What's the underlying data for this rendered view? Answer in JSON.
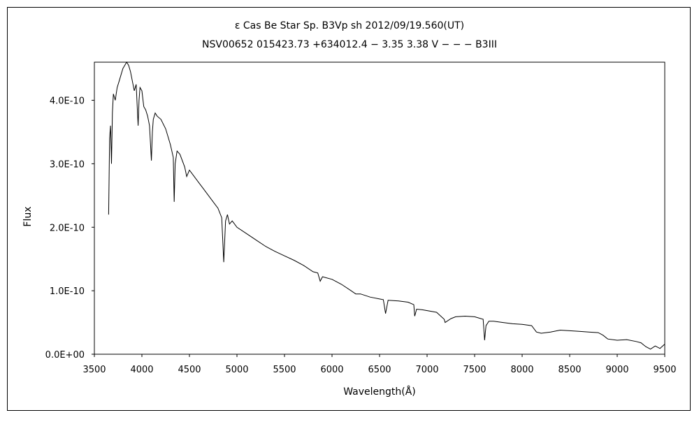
{
  "chart_data": {
    "type": "line",
    "title": "ε  Cas    Be Star    Sp. B3Vp sh    2012/09/19.560(UT)",
    "subtitle": "NSV00652 015423.73 +634012.4 − 3.35 3.38  V − − −  B3III",
    "xlabel": "Wavelength(Å)",
    "ylabel": "Flux",
    "xlim": [
      3500,
      9500
    ],
    "ylim": [
      0,
      4.6e-10
    ],
    "x_ticks": [
      3500,
      4000,
      4500,
      5000,
      5500,
      6000,
      6500,
      7000,
      7500,
      8000,
      8500,
      9000,
      9500
    ],
    "x_tick_labels": [
      "3500",
      "4000",
      "4500",
      "5000",
      "5500",
      "6000",
      "6500",
      "7000",
      "7500",
      "8000",
      "8500",
      "9000",
      "9500"
    ],
    "y_ticks": [
      0,
      1e-10,
      2e-10,
      3e-10,
      4e-10
    ],
    "y_tick_labels": [
      "0.0E+00",
      "1.0E-10",
      "2.0E-10",
      "3.0E-10",
      "4.0E-10"
    ],
    "grid": false,
    "legend": "none",
    "line_color": "#000000",
    "series": [
      {
        "x": [
          3650,
          3660,
          3670,
          3680,
          3690,
          3700,
          3720,
          3740,
          3760,
          3780,
          3800,
          3820,
          3840,
          3860,
          3880,
          3900,
          3920,
          3940,
          3960,
          3970,
          3980,
          4000,
          4020,
          4040,
          4060,
          4080,
          4100,
          4110,
          4120,
          4140,
          4160,
          4200,
          4250,
          4300,
          4330,
          4340,
          4350,
          4370,
          4400,
          4450,
          4471,
          4500,
          4550,
          4600,
          4650,
          4700,
          4750,
          4800,
          4840,
          4861,
          4880,
          4900,
          4921,
          4950,
          5000,
          5100,
          5200,
          5300,
          5400,
          5500,
          5600,
          5700,
          5800,
          5850,
          5876,
          5900,
          6000,
          6100,
          6200,
          6250,
          6300,
          6400,
          6500,
          6540,
          6563,
          6590,
          6700,
          6800,
          6860,
          6870,
          6890,
          6950,
          7100,
          7180,
          7190,
          7250,
          7300,
          7400,
          7500,
          7590,
          7605,
          7620,
          7650,
          7700,
          7800,
          7900,
          8000,
          8100,
          8150,
          8200,
          8300,
          8400,
          8500,
          8600,
          8700,
          8800,
          8850,
          8900,
          9000,
          9100,
          9200,
          9250,
          9300,
          9350,
          9400,
          9450,
          9500
        ],
        "y": [
          2.2e-10,
          3.4e-10,
          3.6e-10,
          3e-10,
          3.8e-10,
          4.1e-10,
          4e-10,
          4.2e-10,
          4.3e-10,
          4.4e-10,
          4.5e-10,
          4.55e-10,
          4.6e-10,
          4.55e-10,
          4.45e-10,
          4.3e-10,
          4.15e-10,
          4.25e-10,
          3.6e-10,
          4e-10,
          4.2e-10,
          4.15e-10,
          3.9e-10,
          3.85e-10,
          3.75e-10,
          3.6e-10,
          3.05e-10,
          3.5e-10,
          3.7e-10,
          3.8e-10,
          3.75e-10,
          3.7e-10,
          3.55e-10,
          3.3e-10,
          3.1e-10,
          2.4e-10,
          3e-10,
          3.2e-10,
          3.15e-10,
          2.95e-10,
          2.8e-10,
          2.9e-10,
          2.8e-10,
          2.7e-10,
          2.6e-10,
          2.5e-10,
          2.4e-10,
          2.3e-10,
          2.15e-10,
          1.45e-10,
          2.1e-10,
          2.2e-10,
          2.05e-10,
          2.1e-10,
          2e-10,
          1.9e-10,
          1.8e-10,
          1.7e-10,
          1.62e-10,
          1.55e-10,
          1.48e-10,
          1.4e-10,
          1.3e-10,
          1.28e-10,
          1.15e-10,
          1.22e-10,
          1.18e-10,
          1.1e-10,
          1e-10,
          9.5e-11,
          9.5e-11,
          9e-11,
          8.7e-11,
          8.6e-11,
          6.4e-11,
          8.5e-11,
          8.4e-11,
          8.2e-11,
          7.8e-11,
          6e-11,
          7.1e-11,
          7e-11,
          6.6e-11,
          5.5e-11,
          5e-11,
          5.6e-11,
          5.9e-11,
          6e-11,
          5.9e-11,
          5.5e-11,
          2.2e-11,
          4.5e-11,
          5.2e-11,
          5.2e-11,
          5e-11,
          4.8e-11,
          4.7e-11,
          4.5e-11,
          3.5e-11,
          3.3e-11,
          3.5e-11,
          3.8e-11,
          3.7e-11,
          3.6e-11,
          3.5e-11,
          3.4e-11,
          3e-11,
          2.4e-11,
          2.2e-11,
          2.3e-11,
          2e-11,
          1.8e-11,
          1.2e-11,
          8e-12,
          1.3e-11,
          9e-12,
          1.6e-11
        ]
      }
    ]
  }
}
